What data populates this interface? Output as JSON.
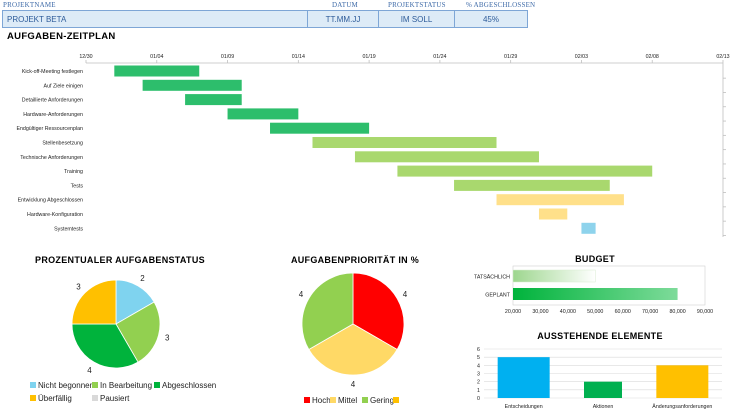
{
  "header": {
    "project_name_label": "PROJEKTNAME",
    "project_name": "PROJEKT BETA",
    "date_label": "DATUM",
    "date": "TT.MM.JJ",
    "status_label": "PROJEKTSTATUS",
    "status": "IM SOLL",
    "percent_label": "% ABGESCHLOSSEN",
    "percent": "45%"
  },
  "colors": {
    "header_fill": "#DDEBF7",
    "header_border": "#7EA6D6",
    "dark_green": "#2DBE6C",
    "light_green": "#A9D86E",
    "yellow": "#FFE08A",
    "light_blue": "#8ED3EC",
    "pie_nicht_begonnen": "#7FD3EF",
    "pie_in_bearbeitung": "#92D050",
    "pie_abgeschlossen": "#00B33C",
    "pie_ueberfaellig": "#FFC000",
    "pie_pausiert": "#D9D9D9",
    "prio_hoch": "#FF0000",
    "prio_mittel": "#FFD966",
    "prio_gering": "#92D050",
    "bar_blue": "#00B0F0",
    "bar_green": "#00B050",
    "bar_yellow": "#FFC000"
  },
  "chart_data": [
    {
      "id": "gantt",
      "type": "bar",
      "orientation": "horizontal-gantt",
      "title": "AUFGABEN-ZEITPLAN",
      "x_ticks": [
        "12/30",
        "01/04",
        "01/09",
        "01/14",
        "01/19",
        "01/24",
        "01/29",
        "02/03",
        "02/08",
        "02/13"
      ],
      "x_range_days": [
        0,
        45
      ],
      "tasks": [
        {
          "name": "Kick-off-Meeting festlegen",
          "start": 2,
          "end": 8,
          "color": "dark_green"
        },
        {
          "name": "Auf Ziele einigen",
          "start": 4,
          "end": 11,
          "color": "dark_green"
        },
        {
          "name": "Detaillierte Anforderungen",
          "start": 7,
          "end": 11,
          "color": "dark_green"
        },
        {
          "name": "Hardware-Anforderungen",
          "start": 10,
          "end": 15,
          "color": "dark_green"
        },
        {
          "name": "Endgültiger Ressourcenplan",
          "start": 13,
          "end": 20,
          "color": "dark_green"
        },
        {
          "name": "Stellenbesetzung",
          "start": 16,
          "end": 29,
          "color": "light_green"
        },
        {
          "name": "Technische Anforderungen",
          "start": 19,
          "end": 32,
          "color": "light_green"
        },
        {
          "name": "Training",
          "start": 22,
          "end": 40,
          "color": "light_green"
        },
        {
          "name": "Tests",
          "start": 26,
          "end": 37,
          "color": "light_green"
        },
        {
          "name": "Entwicklung Abgeschlossen",
          "start": 29,
          "end": 38,
          "color": "yellow"
        },
        {
          "name": "Hardware-Konfiguration",
          "start": 32,
          "end": 34,
          "color": "yellow"
        },
        {
          "name": "Systemtests",
          "start": 35,
          "end": 36,
          "color": "light_blue"
        }
      ]
    },
    {
      "id": "status-pie",
      "type": "pie",
      "title": "PROZENTUALER AUFGABENSTATUS",
      "categories": [
        "Nicht begonnen",
        "In Bearbeitung",
        "Abgeschlossen",
        "Überfällig",
        "Pausiert"
      ],
      "values": [
        2,
        3,
        4,
        3,
        0
      ],
      "legend": "bottom"
    },
    {
      "id": "priority-pie",
      "type": "pie",
      "title": "AUFGABENPRIORITÄT IN %",
      "categories": [
        "Hoch",
        "Mittel",
        "Gering",
        ""
      ],
      "values": [
        4,
        4,
        4,
        0
      ],
      "legend": "bottom"
    },
    {
      "id": "budget",
      "type": "bar",
      "orientation": "horizontal",
      "title": "BUDGET",
      "categories": [
        "TATSÄCHLICH",
        "GEPLANT"
      ],
      "values": [
        50000,
        80000
      ],
      "x_ticks": [
        "20,000",
        "30,000",
        "40,000",
        "50,000",
        "60,000",
        "70,000",
        "80,000",
        "90,000"
      ],
      "xlim": [
        20000,
        90000
      ]
    },
    {
      "id": "outstanding",
      "type": "bar",
      "title": "AUSSTEHENDE ELEMENTE",
      "categories": [
        "Entscheidungen",
        "Aktionen",
        "Änderungsanforderungen"
      ],
      "values": [
        5,
        2,
        4
      ],
      "y_ticks": [
        "0",
        "1",
        "2",
        "3",
        "4",
        "5",
        "6"
      ],
      "ylim": [
        0,
        6
      ],
      "grid": true
    }
  ]
}
